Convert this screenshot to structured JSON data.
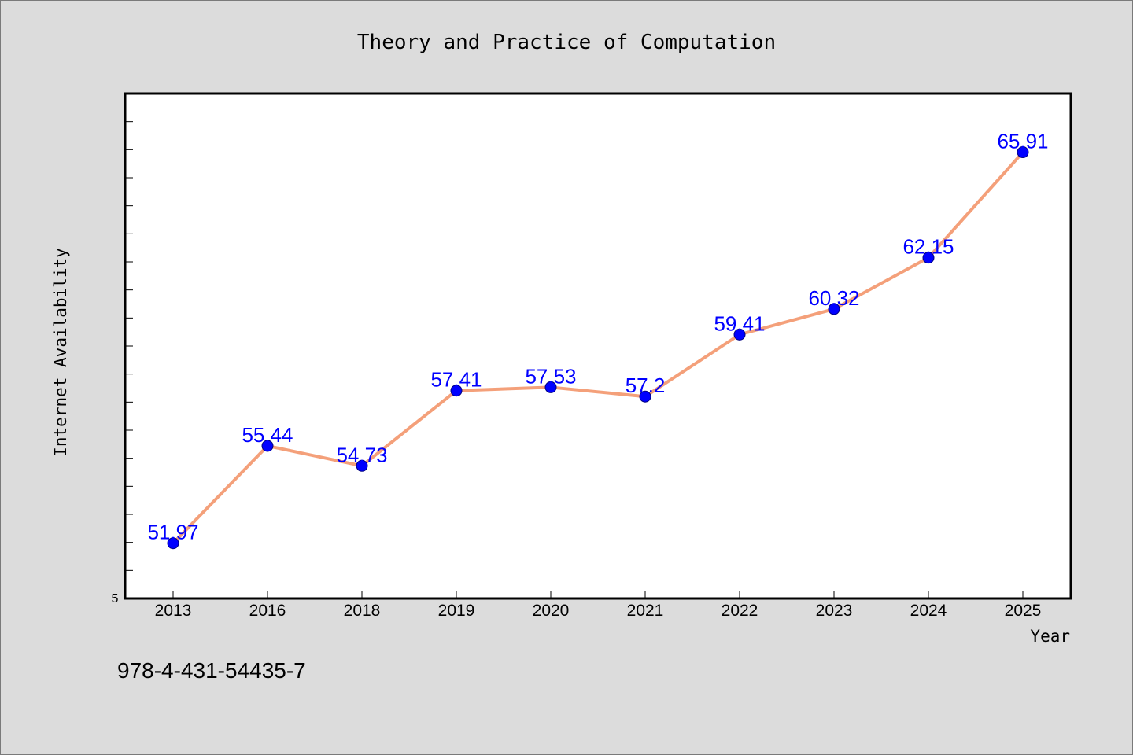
{
  "chart_data": {
    "type": "line",
    "title": "Theory and Practice of Computation",
    "xlabel": "Year",
    "ylabel": "Internet Availability",
    "categories": [
      "2013",
      "2016",
      "2018",
      "2019",
      "2020",
      "2021",
      "2022",
      "2023",
      "2024",
      "2025"
    ],
    "series": [
      {
        "values": [
          51.97,
          55.44,
          54.73,
          57.41,
          57.53,
          57.2,
          59.41,
          60.32,
          62.15,
          65.91
        ],
        "data_labels": [
          "51.97",
          "55.44",
          "54.73",
          "57.41",
          "57.53",
          "57.2",
          "59.41",
          "60.32",
          "62.15",
          "65.91"
        ],
        "line_color": "#f4a07a",
        "marker_color": "#0000ff"
      }
    ],
    "ylim": [
      50,
      68
    ],
    "y_tick_label": "5",
    "grid": false,
    "legend": "none",
    "background_color": "#dcdcdc",
    "plot_background_color": "#ffffff"
  },
  "footer": {
    "isbn": "978-4-431-54435-7"
  }
}
